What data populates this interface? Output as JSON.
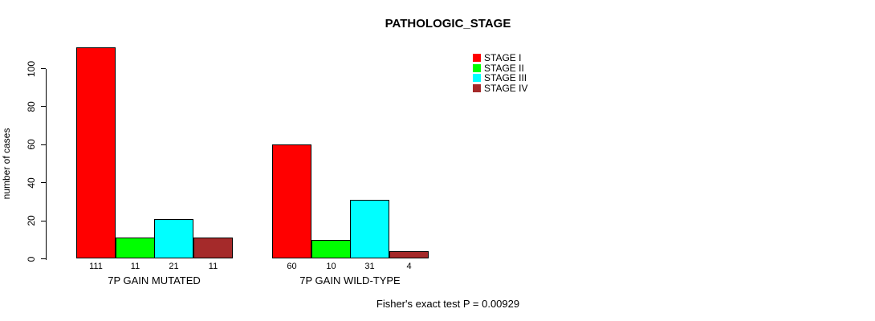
{
  "chart_data": {
    "type": "bar",
    "title": "PATHOLOGIC_STAGE",
    "ylabel": "number of cases",
    "xlabel": "",
    "ylim": [
      0,
      100
    ],
    "yticks": [
      0,
      20,
      40,
      60,
      80,
      100
    ],
    "grid": false,
    "legend_position": "top-right",
    "categories": [
      "7P GAIN MUTATED",
      "7P GAIN WILD-TYPE"
    ],
    "series": [
      {
        "name": "STAGE I",
        "color": "#FF0000",
        "values": [
          111,
          60
        ]
      },
      {
        "name": "STAGE II",
        "color": "#00FF00",
        "values": [
          11,
          10
        ]
      },
      {
        "name": "STAGE III",
        "color": "#00FFFF",
        "values": [
          21,
          31
        ]
      },
      {
        "name": "STAGE IV",
        "color": "#A52A2A",
        "values": [
          11,
          4
        ]
      }
    ],
    "groups": [
      {
        "label": "7P GAIN MUTATED",
        "values": [
          111,
          11,
          21,
          11
        ]
      },
      {
        "label": "7P GAIN WILD-TYPE",
        "values": [
          60,
          10,
          31,
          4
        ]
      }
    ],
    "bar_value_labels": [
      [
        "111",
        "11",
        "21",
        "11"
      ],
      [
        "60",
        "10",
        "31",
        "4"
      ]
    ],
    "annotation": "Fisher's exact test P = 0.00929"
  }
}
